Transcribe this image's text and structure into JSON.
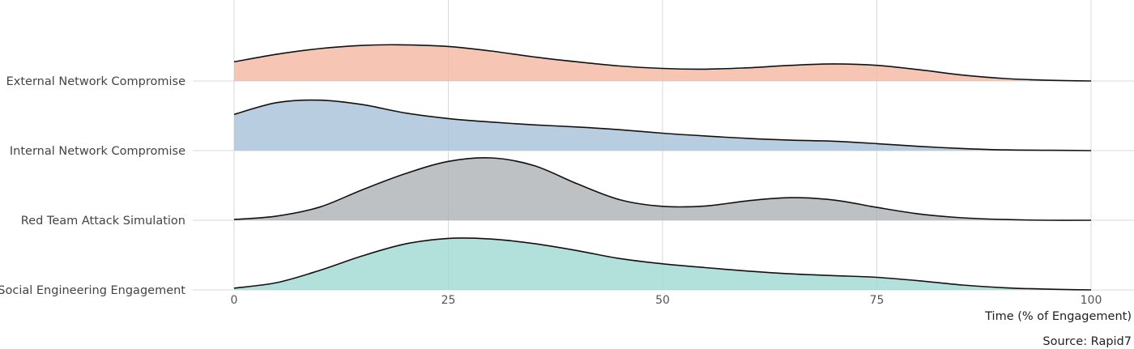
{
  "chart_data": {
    "type": "area",
    "subtype": "ridgeline",
    "xlabel": "Time (% of Engagement)",
    "caption": "Source: Rapid7",
    "xlim": [
      0,
      100
    ],
    "xticks": [
      0,
      25,
      50,
      75,
      100
    ],
    "grid": true,
    "legend": "none",
    "series": [
      {
        "name": "External Network Compromise",
        "color": "#f4b6a0",
        "density_x": [
          0,
          5,
          10,
          15,
          19,
          25,
          30,
          35,
          40,
          45,
          50,
          55,
          60,
          65,
          70,
          75,
          80,
          85,
          90,
          95,
          100
        ],
        "density_y": [
          0.55,
          0.77,
          0.93,
          1.02,
          1.04,
          0.99,
          0.86,
          0.69,
          0.55,
          0.43,
          0.36,
          0.34,
          0.38,
          0.45,
          0.49,
          0.45,
          0.32,
          0.17,
          0.07,
          0.02,
          0.0
        ]
      },
      {
        "name": "Internal Network Compromise",
        "color": "#a7c1d8",
        "density_x": [
          0,
          5,
          10,
          15,
          20,
          25,
          30,
          35,
          40,
          45,
          50,
          55,
          60,
          65,
          70,
          75,
          80,
          85,
          90,
          95,
          100
        ],
        "density_y": [
          1.04,
          1.38,
          1.45,
          1.32,
          1.08,
          0.92,
          0.82,
          0.74,
          0.68,
          0.6,
          0.5,
          0.42,
          0.35,
          0.3,
          0.27,
          0.2,
          0.12,
          0.06,
          0.02,
          0.01,
          0.0
        ]
      },
      {
        "name": "Red Team Attack Simulation",
        "color": "#adb1b5",
        "density_x": [
          0,
          5,
          10,
          15,
          20,
          25,
          30,
          35,
          40,
          45,
          50,
          55,
          60,
          65,
          70,
          75,
          80,
          85,
          90,
          95,
          100
        ],
        "density_y": [
          0.02,
          0.12,
          0.38,
          0.88,
          1.34,
          1.69,
          1.79,
          1.57,
          1.05,
          0.59,
          0.4,
          0.41,
          0.56,
          0.65,
          0.58,
          0.37,
          0.18,
          0.07,
          0.02,
          0.0,
          0.0
        ]
      },
      {
        "name": "Social Engineering Engagement",
        "color": "#9fd8d1",
        "density_x": [
          0,
          5,
          10,
          15,
          20,
          25,
          30,
          35,
          40,
          45,
          50,
          55,
          60,
          65,
          70,
          75,
          80,
          85,
          90,
          95,
          100
        ],
        "density_y": [
          0.05,
          0.21,
          0.56,
          0.98,
          1.32,
          1.48,
          1.46,
          1.33,
          1.13,
          0.9,
          0.75,
          0.64,
          0.54,
          0.46,
          0.41,
          0.36,
          0.26,
          0.14,
          0.06,
          0.02,
          0.0
        ]
      }
    ]
  }
}
